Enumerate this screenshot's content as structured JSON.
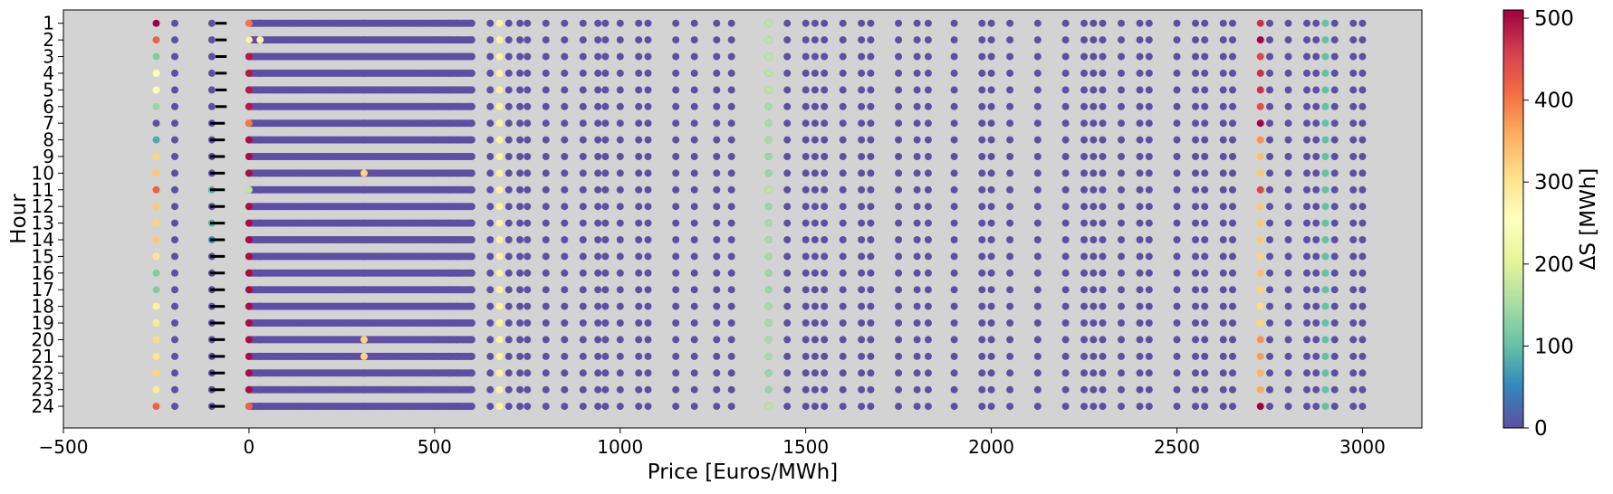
{
  "chart_data": {
    "type": "scatter",
    "xlabel": "Price [Euros/MWh]",
    "ylabel": "Hour",
    "xlim": [
      -500,
      3160
    ],
    "ylim": [
      0.2,
      25.3
    ],
    "y_inverted": true,
    "background_color": "#d3d3d3",
    "x_ticks": [
      -500,
      0,
      500,
      1000,
      1500,
      2000,
      2500,
      3000
    ],
    "x_tick_labels": [
      "−500",
      "0",
      "500",
      "1000",
      "1500",
      "2000",
      "2500",
      "3000"
    ],
    "hours": [
      1,
      2,
      3,
      4,
      5,
      6,
      7,
      8,
      9,
      10,
      11,
      12,
      13,
      14,
      15,
      16,
      17,
      18,
      19,
      20,
      21,
      22,
      23,
      24
    ],
    "hour_labels": [
      "1",
      "2",
      "3",
      "4",
      "5",
      "6",
      "7",
      "8",
      "9",
      "10",
      "11",
      "12",
      "13",
      "14",
      "15",
      "16",
      "17",
      "18",
      "19",
      "20",
      "21",
      "22",
      "23",
      "24"
    ],
    "colorbar": {
      "label": "ΔS [MWh]",
      "colormap": "Spectral_r",
      "min": 0,
      "max": 510,
      "ticks": [
        0,
        100,
        200,
        300,
        400,
        500
      ],
      "tick_labels": [
        "0",
        "100",
        "200",
        "300",
        "400",
        "500"
      ],
      "colors": [
        "#5e4fa2",
        "#3288bd",
        "#66c2a5",
        "#abdda4",
        "#e6f598",
        "#ffffbf",
        "#fee08b",
        "#fdae61",
        "#f46d43",
        "#d53e4f",
        "#9e0142"
      ]
    },
    "default_delta_s": 0,
    "dense_band": {
      "price_range": [
        0,
        600
      ],
      "delta_s": 0,
      "step": 5
    },
    "sparse_prices": [
      500,
      540,
      560,
      600,
      650,
      700,
      730,
      750,
      800,
      850,
      900,
      940,
      960,
      1000,
      1050,
      1075,
      1150,
      1200,
      1260,
      1300,
      1400,
      1450,
      1500,
      1525,
      1550,
      1600,
      1650,
      1675,
      1750,
      1800,
      1830,
      1900,
      1975,
      2000,
      2050,
      2125,
      2200,
      2250,
      2275,
      2300,
      2350,
      2400,
      2425,
      2500,
      2550,
      2575,
      2625,
      2650,
      2750,
      2800,
      2850,
      2875,
      2925,
      2975,
      3000
    ],
    "special_columns": [
      {
        "price": -250,
        "delta_s": [
          510,
          420,
          120,
          250,
          240,
          140,
          0,
          80,
          320,
          330,
          420,
          330,
          320,
          330,
          300,
          120,
          120,
          280,
          290,
          310,
          300,
          320,
          290,
          420
        ]
      },
      {
        "price": -200,
        "delta_s": [
          0,
          0,
          0,
          0,
          0,
          0,
          0,
          0,
          0,
          0,
          0,
          0,
          0,
          0,
          0,
          0,
          0,
          0,
          0,
          0,
          0,
          0,
          0,
          0
        ]
      },
      {
        "price": -100,
        "delta_s": [
          0,
          0,
          0,
          0,
          0,
          0,
          0,
          0,
          0,
          0,
          90,
          0,
          90,
          60,
          0,
          0,
          0,
          0,
          0,
          0,
          0,
          0,
          0,
          0
        ]
      },
      {
        "price": 0,
        "delta_s": [
          400,
          280,
          490,
          490,
          490,
          490,
          400,
          500,
          500,
          500,
          170,
          500,
          500,
          500,
          500,
          500,
          500,
          500,
          500,
          500,
          500,
          500,
          500,
          420
        ]
      },
      {
        "price": 30,
        "delta_s": [
          0,
          280,
          0,
          0,
          0,
          0,
          0,
          0,
          0,
          0,
          0,
          0,
          0,
          0,
          0,
          0,
          0,
          0,
          0,
          0,
          0,
          0,
          0,
          0
        ]
      },
      {
        "price": 310,
        "delta_s": [
          0,
          0,
          0,
          0,
          0,
          0,
          0,
          0,
          0,
          320,
          0,
          0,
          0,
          0,
          0,
          0,
          0,
          0,
          0,
          320,
          320,
          0,
          0,
          0
        ]
      },
      {
        "price": 675,
        "delta_s": [
          280,
          280,
          280,
          280,
          280,
          280,
          280,
          280,
          280,
          280,
          280,
          280,
          280,
          280,
          280,
          280,
          280,
          280,
          280,
          280,
          280,
          280,
          280,
          280
        ]
      },
      {
        "price": 1400,
        "delta_s": [
          170,
          170,
          170,
          170,
          170,
          150,
          150,
          150,
          140,
          140,
          170,
          140,
          150,
          150,
          150,
          140,
          140,
          150,
          150,
          150,
          150,
          140,
          140,
          170
        ]
      },
      {
        "price": 2725,
        "delta_s": [
          470,
          510,
          450,
          470,
          470,
          440,
          510,
          380,
          340,
          330,
          450,
          330,
          330,
          330,
          320,
          340,
          320,
          310,
          320,
          380,
          370,
          350,
          360,
          510
        ]
      },
      {
        "price": 2900,
        "delta_s": [
          100,
          100,
          100,
          100,
          100,
          100,
          100,
          100,
          100,
          100,
          100,
          100,
          100,
          100,
          100,
          100,
          100,
          100,
          100,
          100,
          100,
          100,
          100,
          100
        ]
      }
    ],
    "short_lines": [
      {
        "price_range": [
          -90,
          -60
        ],
        "hours": [
          1,
          2,
          3,
          4,
          5,
          6
        ]
      },
      {
        "price_range": [
          -105,
          -65
        ],
        "hours": [
          7,
          8,
          9,
          10,
          11,
          12,
          13,
          14,
          15,
          16,
          17,
          18,
          19,
          20,
          21,
          22,
          23,
          24
        ]
      }
    ]
  }
}
